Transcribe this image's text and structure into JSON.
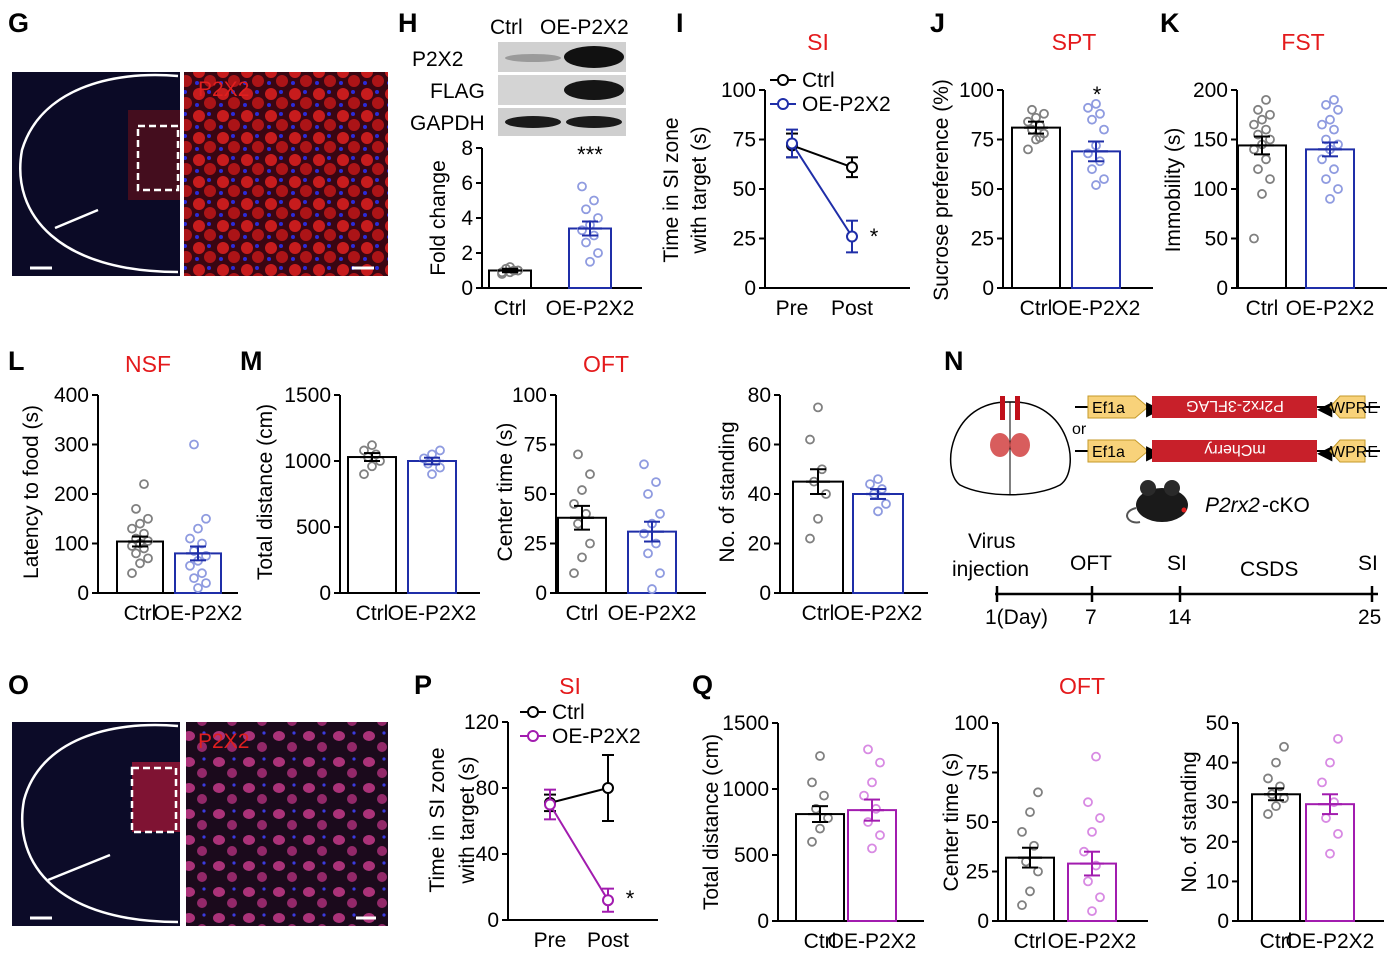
{
  "figure": {
    "colors": {
      "ctrl": "#000000",
      "oe_blue": "#1f2ea8",
      "oe_blue_pts": "#8f9be0",
      "oe_purple": "#a21caf",
      "oe_purple_pts": "#d88ae3",
      "ctrl_pts": "#808080",
      "title_red": "#e41a1c",
      "micro_red": "#d81b1b"
    },
    "panel_letters": {
      "G": "G",
      "H": "H",
      "I": "I",
      "J": "J",
      "K": "K",
      "L": "L",
      "M": "M",
      "N": "N",
      "O": "O",
      "P": "P",
      "Q": "Q"
    },
    "micro_G": {
      "label": "P2X2"
    },
    "micro_O": {
      "label": "P2X2"
    },
    "blot_H": {
      "lanes": [
        "Ctrl",
        "OE-P2X2"
      ],
      "rows": [
        "P2X2",
        "FLAG",
        "GAPDH"
      ]
    },
    "schematic_N": {
      "promoter": "Ef1a",
      "construct1": "P2rx2-3FLAG",
      "construct2": "mCherry",
      "wpre": "WPRE",
      "or_text": "or",
      "mouse_label_italic": "P2rx2",
      "mouse_label_suffix": "-cKO",
      "timeline": {
        "events": [
          "Virus",
          "injection",
          "OFT",
          "SI",
          "CSDS",
          "SI"
        ],
        "days": [
          "1(Day)",
          "7",
          "14",
          "25"
        ]
      }
    }
  },
  "chart_data": [
    {
      "id": "H",
      "type": "bar",
      "title": "",
      "ylabel": "Fold change",
      "ylim": [
        0,
        8
      ],
      "yticks": [
        "0",
        "2",
        "4",
        "6",
        "8"
      ],
      "categories": [
        "Ctrl",
        "OE-P2X2"
      ],
      "values": [
        1.0,
        3.4
      ],
      "sem": [
        0.1,
        0.4
      ],
      "significance": "***",
      "points": [
        [
          0.8,
          0.9,
          1.0,
          1.1,
          1.0,
          0.9,
          1.2,
          1.0
        ],
        [
          1.5,
          2.0,
          2.6,
          3.0,
          3.3,
          3.6,
          4.0,
          4.5,
          5.0,
          5.8
        ]
      ]
    },
    {
      "id": "I",
      "type": "line",
      "title": "SI",
      "ylabel": [
        "Time in SI zone",
        "with target (s)"
      ],
      "ylim": [
        0,
        100
      ],
      "yticks": [
        "0",
        "25",
        "50",
        "75",
        "100"
      ],
      "x": [
        "Pre",
        "Post"
      ],
      "series": [
        {
          "name": "Ctrl",
          "values": [
            72,
            61
          ],
          "sem": [
            6,
            5
          ]
        },
        {
          "name": "OE-P2X2",
          "values": [
            73,
            26
          ],
          "sem": [
            7,
            8
          ]
        }
      ],
      "significance": "*"
    },
    {
      "id": "J",
      "type": "bar",
      "title": "SPT",
      "ylabel": "Sucrose preference (%)",
      "ylim": [
        0,
        100
      ],
      "yticks": [
        "0",
        "25",
        "50",
        "75",
        "100"
      ],
      "categories": [
        "Ctrl",
        "OE-P2X2"
      ],
      "values": [
        81,
        69
      ],
      "sem": [
        3,
        5
      ],
      "significance": "*",
      "points": [
        [
          70,
          75,
          78,
          80,
          82,
          84,
          86,
          88,
          90,
          76
        ],
        [
          52,
          55,
          60,
          64,
          68,
          72,
          80,
          85,
          88,
          91,
          93
        ]
      ]
    },
    {
      "id": "K",
      "type": "bar",
      "title": "FST",
      "ylabel": "Immobility (s)",
      "ylim": [
        0,
        200
      ],
      "yticks": [
        "0",
        "50",
        "100",
        "150",
        "200"
      ],
      "categories": [
        "Ctrl",
        "OE-P2X2"
      ],
      "values": [
        144,
        140
      ],
      "sem": [
        9,
        7
      ],
      "significance": "",
      "points": [
        [
          50,
          95,
          110,
          120,
          130,
          140,
          145,
          150,
          155,
          160,
          165,
          170,
          175,
          180,
          190
        ],
        [
          90,
          100,
          110,
          120,
          130,
          140,
          145,
          150,
          160,
          165,
          170,
          180,
          185,
          190
        ]
      ]
    },
    {
      "id": "L",
      "type": "bar",
      "title": "NSF",
      "ylabel": "Latency to food (s)",
      "ylim": [
        0,
        400
      ],
      "yticks": [
        "0",
        "100",
        "200",
        "300",
        "400"
      ],
      "categories": [
        "Ctrl",
        "OE-P2X2"
      ],
      "values": [
        104,
        80
      ],
      "sem": [
        10,
        14
      ],
      "significance": "",
      "points": [
        [
          40,
          60,
          70,
          80,
          90,
          95,
          100,
          105,
          110,
          120,
          130,
          140,
          150,
          170,
          220
        ],
        [
          10,
          20,
          30,
          40,
          55,
          65,
          75,
          85,
          100,
          110,
          130,
          150,
          300
        ]
      ]
    },
    {
      "id": "M1",
      "type": "bar",
      "title": "",
      "ylabel": "Total distance (cm)",
      "ylim": [
        0,
        1500
      ],
      "yticks": [
        "0",
        "500",
        "1000",
        "1500"
      ],
      "categories": [
        "Ctrl",
        "OE-P2X2"
      ],
      "values": [
        1030,
        1000
      ],
      "sem": [
        30,
        25
      ],
      "significance": "",
      "points": [
        [
          900,
          960,
          1000,
          1030,
          1050,
          1080,
          1120
        ],
        [
          900,
          950,
          980,
          1000,
          1020,
          1050,
          1080
        ]
      ]
    },
    {
      "id": "M2",
      "type": "bar",
      "title": "OFT",
      "ylabel": "Center time (s)",
      "ylim": [
        0,
        100
      ],
      "yticks": [
        "0",
        "25",
        "50",
        "75",
        "100"
      ],
      "categories": [
        "Ctrl",
        "OE-P2X2"
      ],
      "values": [
        38,
        31
      ],
      "sem": [
        6,
        5
      ],
      "significance": "",
      "points": [
        [
          10,
          18,
          25,
          35,
          40,
          45,
          52,
          60,
          70
        ],
        [
          2,
          10,
          20,
          25,
          30,
          35,
          40,
          50,
          56,
          65
        ]
      ]
    },
    {
      "id": "M3",
      "type": "bar",
      "title": "",
      "ylabel": "No. of standing",
      "ylim": [
        0,
        80
      ],
      "yticks": [
        "0",
        "20",
        "40",
        "60",
        "80"
      ],
      "categories": [
        "Ctrl",
        "OE-P2X2"
      ],
      "values": [
        45,
        40
      ],
      "sem": [
        5,
        2
      ],
      "significance": "",
      "points": [
        [
          22,
          30,
          40,
          45,
          50,
          62,
          75
        ],
        [
          33,
          36,
          40,
          42,
          44,
          46
        ]
      ]
    },
    {
      "id": "P",
      "type": "line",
      "title": "SI",
      "ylabel": [
        "Time in SI zone",
        "with target (s)"
      ],
      "ylim": [
        0,
        120
      ],
      "yticks": [
        "0",
        "40",
        "80",
        "120"
      ],
      "x": [
        "Pre",
        "Post"
      ],
      "series": [
        {
          "name": "Ctrl",
          "values": [
            71,
            80
          ],
          "sem": [
            5,
            20
          ]
        },
        {
          "name": "OE-P2X2",
          "values": [
            70,
            12
          ],
          "sem": [
            9,
            7
          ]
        }
      ],
      "significance": "*"
    },
    {
      "id": "Q1",
      "type": "bar",
      "title": "",
      "ylabel": "Total distance (cm)",
      "ylim": [
        0,
        1500
      ],
      "yticks": [
        "0",
        "500",
        "1000",
        "1500"
      ],
      "categories": [
        "Ctrl",
        "OE-P2X2"
      ],
      "values": [
        810,
        840
      ],
      "sem": [
        60,
        80
      ],
      "significance": "",
      "points": [
        [
          600,
          700,
          780,
          850,
          950,
          1050,
          1250
        ],
        [
          550,
          650,
          750,
          850,
          950,
          1050,
          1200,
          1300
        ]
      ]
    },
    {
      "id": "Q2",
      "type": "bar",
      "title": "OFT",
      "ylabel": "Center time (s)",
      "ylim": [
        0,
        100
      ],
      "yticks": [
        "0",
        "25",
        "50",
        "75",
        "100"
      ],
      "categories": [
        "Ctrl",
        "OE-P2X2"
      ],
      "values": [
        32,
        29
      ],
      "sem": [
        5,
        6
      ],
      "significance": "",
      "points": [
        [
          8,
          15,
          25,
          30,
          38,
          45,
          55,
          65
        ],
        [
          5,
          12,
          20,
          28,
          35,
          45,
          52,
          60,
          83
        ]
      ]
    },
    {
      "id": "Q3",
      "type": "bar",
      "title": "",
      "ylabel": "No. of standing",
      "ylim": [
        0,
        50
      ],
      "yticks": [
        "0",
        "10",
        "20",
        "30",
        "40",
        "50"
      ],
      "categories": [
        "Ctrl",
        "OE-P2X2"
      ],
      "values": [
        32,
        29.5
      ],
      "sem": [
        1.5,
        2.5
      ],
      "significance": "",
      "points": [
        [
          27,
          29,
          31,
          32,
          34,
          36,
          40,
          44
        ],
        [
          17,
          22,
          26,
          30,
          35,
          40,
          46
        ]
      ]
    }
  ]
}
